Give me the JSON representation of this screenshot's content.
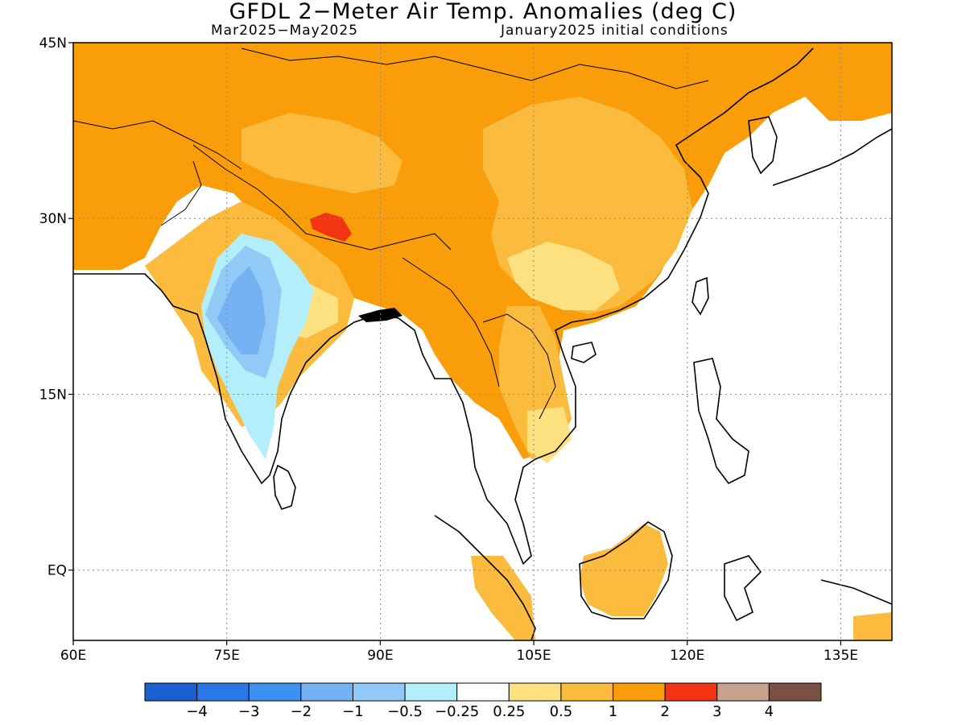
{
  "title": "GFDL 2−Meter Air Temp. Anomalies (deg C)",
  "subtitle_left": "Mar2025−May2025",
  "subtitle_right": "January2025 initial conditions",
  "map": {
    "lon_range": [
      60,
      140
    ],
    "lat_range": [
      -6,
      45
    ],
    "lon_ticks": [
      {
        "value": 60,
        "label": "60E"
      },
      {
        "value": 75,
        "label": "75E"
      },
      {
        "value": 90,
        "label": "90E"
      },
      {
        "value": 105,
        "label": "105E"
      },
      {
        "value": 120,
        "label": "120E"
      },
      {
        "value": 135,
        "label": "135E"
      }
    ],
    "lat_ticks": [
      {
        "value": 45,
        "label": "45N"
      },
      {
        "value": 30,
        "label": "30N"
      },
      {
        "value": 15,
        "label": "15N"
      },
      {
        "value": 0,
        "label": "EQ"
      }
    ],
    "grid": "dotted"
  },
  "colorbar": {
    "colors": [
      "#1b60d0",
      "#2a77e8",
      "#3d92f0",
      "#74b2f4",
      "#92caf7",
      "#b4eefa",
      "#ffffff",
      "#fde07f",
      "#fbbb3e",
      "#f99d0b",
      "#f33412",
      "#c8a08e",
      "#7a5044"
    ],
    "labels": [
      "−4",
      "−3",
      "−2",
      "−1",
      "−0.5",
      "−0.25",
      "0.25",
      "0.5",
      "1",
      "2",
      "3",
      "4"
    ]
  }
}
